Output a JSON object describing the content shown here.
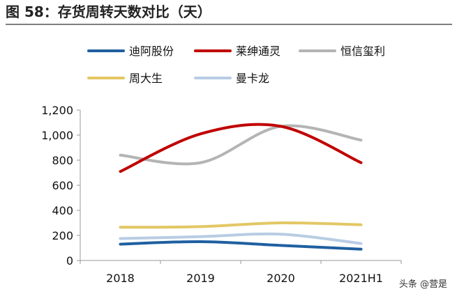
{
  "figure": {
    "title": "图 58：存货周转天数对比（天）",
    "watermark": "头条 @营是"
  },
  "chart_data": {
    "type": "line",
    "title": "存货周转天数对比（天）",
    "xlabel": "",
    "ylabel": "",
    "categories": [
      "2018",
      "2019",
      "2020",
      "2021H1"
    ],
    "ylim": [
      0,
      1200
    ],
    "yticks": [
      0,
      200,
      400,
      600,
      800,
      1000,
      1200
    ],
    "ytick_labels": [
      "0",
      "200",
      "400",
      "600",
      "800",
      "1,000",
      "1,200"
    ],
    "grid": false,
    "legend_position": "top",
    "series": [
      {
        "name": "迪阿股份",
        "color": "#1f5fa0",
        "values": [
          130,
          150,
          120,
          90
        ]
      },
      {
        "name": "莱绅通灵",
        "color": "#c00000",
        "values": [
          710,
          1010,
          1070,
          780
        ]
      },
      {
        "name": "恒信玺利",
        "color": "#b4b4b4",
        "values": [
          840,
          780,
          1070,
          960
        ]
      },
      {
        "name": "周大生",
        "color": "#e3c765",
        "values": [
          265,
          270,
          300,
          285
        ]
      },
      {
        "name": "曼卡龙",
        "color": "#b8cce4",
        "values": [
          175,
          190,
          210,
          135
        ]
      }
    ]
  }
}
